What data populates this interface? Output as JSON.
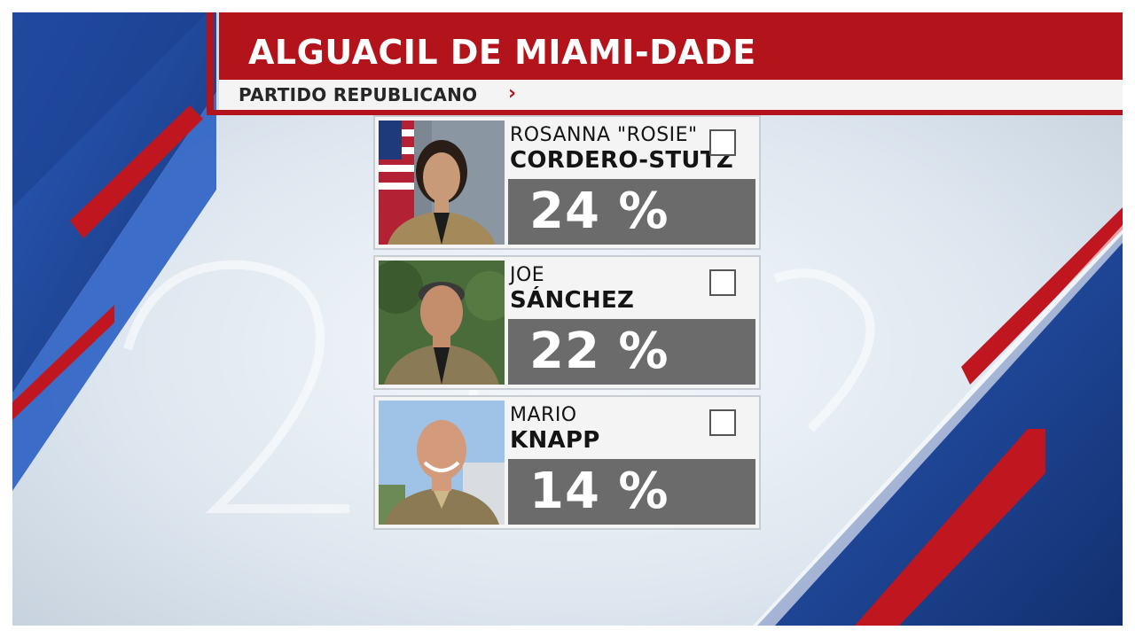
{
  "header": {
    "title": "ALGUACIL DE MIAMI-DADE",
    "subtitle": "PARTIDO REPUBLICANO",
    "chevron": "›"
  },
  "colors": {
    "accent_red": "#b3131b",
    "accent_blue": "#1f4fa6",
    "percent_box": "#6b6b6b"
  },
  "candidates": [
    {
      "first_name": "ROSANNA \"ROSIE\"",
      "last_name": "CORDERO-STUTZ",
      "percent": "24 %",
      "photo_icon": "candidate-photo"
    },
    {
      "first_name": "JOE",
      "last_name": "SÁNCHEZ",
      "percent": "22 %",
      "photo_icon": "candidate-photo"
    },
    {
      "first_name": "MARIO",
      "last_name": "KNAPP",
      "percent": "14 %",
      "photo_icon": "candidate-photo"
    }
  ]
}
